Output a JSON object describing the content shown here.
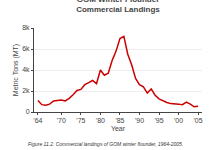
{
  "chart_data": {
    "type": "line",
    "title": "GOM Winter Flounder\nCommercial Landings",
    "xlabel": "Year",
    "ylabel": "Metric Tons (MT)",
    "caption": "Figure 11.2. Commercial landings of GOM winter flounder, 1964-2005.",
    "color": "#cc0000",
    "x": [
      1964,
      1965,
      1966,
      1967,
      1968,
      1969,
      1970,
      1971,
      1972,
      1973,
      1974,
      1975,
      1976,
      1977,
      1978,
      1979,
      1980,
      1981,
      1982,
      1983,
      1984,
      1985,
      1986,
      1987,
      1988,
      1989,
      1990,
      1991,
      1992,
      1993,
      1994,
      1995,
      1996,
      1997,
      1998,
      1999,
      2000,
      2001,
      2002,
      2003,
      2004,
      2005
    ],
    "values": [
      1100,
      700,
      650,
      750,
      1050,
      1100,
      1150,
      1050,
      1300,
      1650,
      2050,
      2150,
      2600,
      2800,
      3000,
      2700,
      4000,
      3500,
      3700,
      4900,
      5800,
      7000,
      7200,
      5500,
      4500,
      3200,
      2600,
      2400,
      1800,
      2200,
      1600,
      1250,
      1050,
      900,
      800,
      800,
      750,
      700,
      950,
      750,
      500,
      550
    ],
    "xlim": [
      1963,
      2006
    ],
    "xticks": [
      {
        "value": 1964,
        "label": "'64"
      },
      {
        "value": 1970,
        "label": "'70"
      },
      {
        "value": 1975,
        "label": "'75"
      },
      {
        "value": 1980,
        "label": "'80"
      },
      {
        "value": 1985,
        "label": "'85"
      },
      {
        "value": 1990,
        "label": "'90"
      },
      {
        "value": 1995,
        "label": "'95"
      },
      {
        "value": 2000,
        "label": "'00"
      },
      {
        "value": 2005,
        "label": "'05"
      }
    ],
    "ylim": [
      0,
      8000
    ],
    "yticks": [
      0,
      {
        "value": 2000,
        "label": "2k"
      },
      {
        "value": 4000,
        "label": "4k"
      },
      {
        "value": 6000,
        "label": "6k"
      },
      {
        "value": 8000,
        "label": "8k"
      }
    ],
    "grid": "y"
  }
}
